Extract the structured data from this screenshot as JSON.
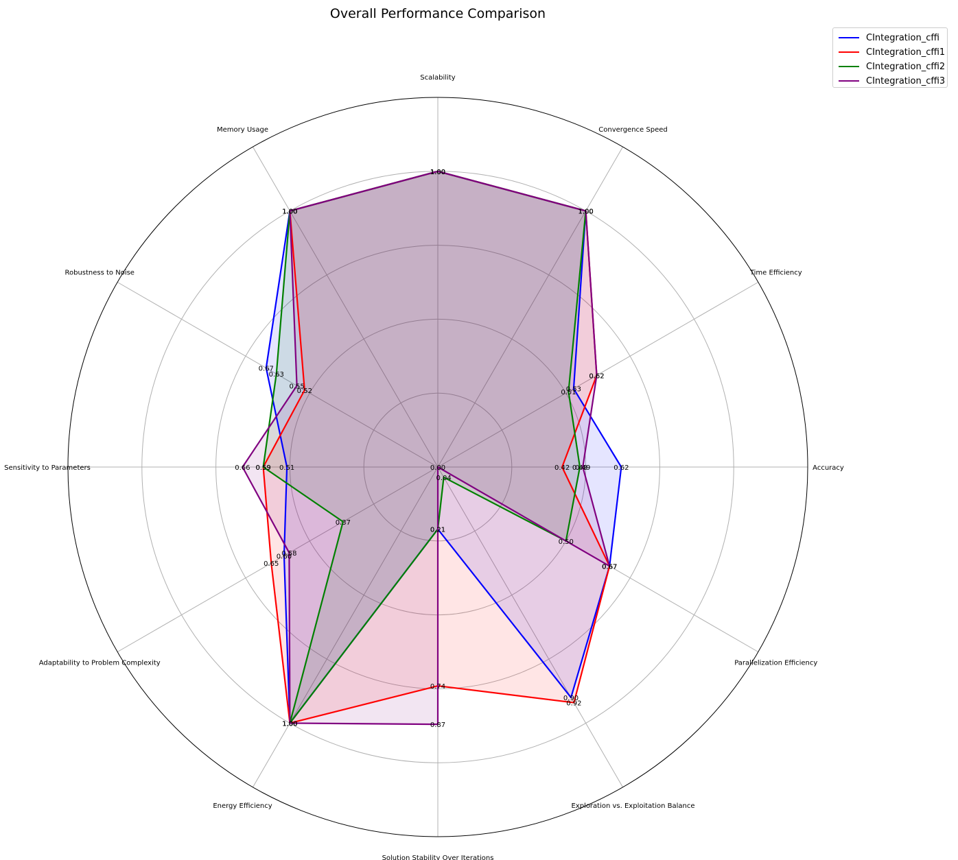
{
  "chart_data": {
    "type": "radar",
    "title": "Overall Performance Comparison",
    "axes": [
      "Scalability",
      "Convergence Speed",
      "Time Efficiency",
      "Accuracy",
      "Parallelization Efficiency",
      "Exploration vs. Exploitation Balance",
      "Solution Stability Over Iterations",
      "Energy Efficiency",
      "Adaptability to Problem Complexity",
      "Sensitivity to Parameters",
      "Robustness to Noise",
      "Memory Usage"
    ],
    "rlim": [
      0,
      1.25
    ],
    "grid": true,
    "legend_position": "top-right",
    "series": [
      {
        "name": "CIntegration_cffi",
        "color": "#0000ff",
        "fill": "#0000ff",
        "values": [
          1.0,
          1.0,
          0.53,
          0.62,
          0.67,
          0.9,
          0.21,
          1.0,
          0.6,
          0.51,
          0.67,
          1.0
        ]
      },
      {
        "name": "CIntegration_cffi1",
        "color": "#ff0000",
        "fill": "#ff0000",
        "values": [
          1.0,
          1.0,
          0.62,
          0.42,
          0.67,
          0.92,
          0.74,
          1.0,
          0.65,
          0.59,
          0.52,
          1.0
        ]
      },
      {
        "name": "CIntegration_cffi2",
        "color": "#008000",
        "fill": "#008000",
        "values": [
          1.0,
          1.0,
          0.51,
          0.48,
          0.5,
          0.04,
          0.21,
          1.0,
          0.37,
          0.59,
          0.63,
          1.0
        ]
      },
      {
        "name": "CIntegration_cffi3",
        "color": "#800080",
        "fill": "#800080",
        "values": [
          1.0,
          1.0,
          0.62,
          0.49,
          0.67,
          0.0,
          0.87,
          1.0,
          0.58,
          0.66,
          0.55,
          1.0
        ]
      }
    ]
  }
}
